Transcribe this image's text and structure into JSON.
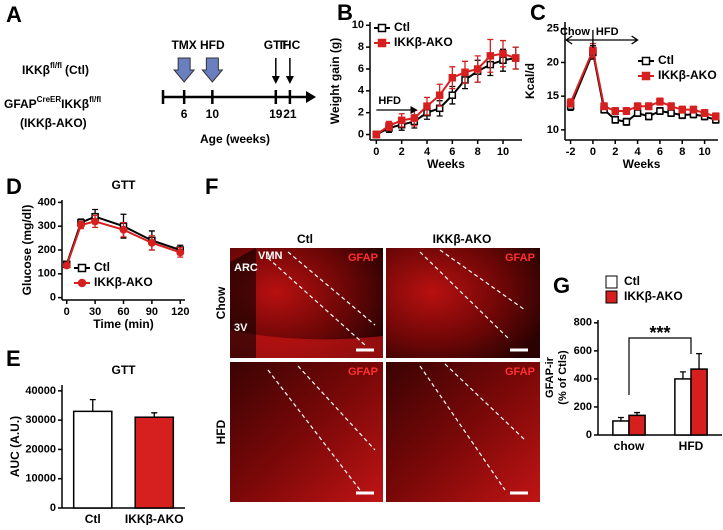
{
  "panel_labels": [
    "A",
    "B",
    "C",
    "D",
    "E",
    "F",
    "G"
  ],
  "timeline": {
    "genotypes": [
      [
        "IKKβ",
        "fl/fl",
        "(Ctl)"
      ],
      [
        "GFAP",
        "CreER",
        "IKKβ",
        "fl/fl"
      ],
      [
        "(IKKβ-AKO)"
      ]
    ],
    "events": [
      {
        "label": "TMX",
        "week": "6"
      },
      {
        "label": "HFD",
        "week": "10"
      },
      {
        "label": "GTT",
        "week": "19"
      },
      {
        "label": "IHC",
        "week": "21"
      }
    ],
    "xlabel": "Age (weeks)"
  },
  "micrographs": {
    "columns": [
      "Ctl",
      "IKKβ-AKO"
    ],
    "rows": [
      "Chow",
      "HFD"
    ],
    "stain": "GFAP",
    "regions": [
      "ARC",
      "VMN",
      "3V"
    ]
  },
  "chart_data": [
    {
      "type": "line",
      "xlabel": "Weeks",
      "ylabel": "Weight gain (g)",
      "annotations": [
        "HFD"
      ],
      "legend": "upper left",
      "x": [
        0,
        1,
        2,
        3,
        4,
        5,
        6,
        7,
        8,
        9,
        10,
        11
      ],
      "xlim": [
        -0.5,
        11.5
      ],
      "xticks": [
        0,
        2,
        4,
        6,
        8,
        10
      ],
      "ylim": [
        -0.5,
        10.3
      ],
      "yticks": [
        0,
        2,
        4,
        6,
        8,
        10
      ],
      "series": [
        {
          "name": "Ctl",
          "color": "#000000",
          "fill": "#ffffff",
          "marker": "square",
          "values": [
            0,
            0.6,
            0.9,
            1.2,
            2,
            2.4,
            3.6,
            5,
            5.8,
            6.4,
            6.8,
            7
          ],
          "errors": [
            0.3,
            0.4,
            0.5,
            0.6,
            0.6,
            0.7,
            0.8,
            0.8,
            1,
            1,
            1,
            1
          ]
        },
        {
          "name": "IKKβ-AKO",
          "color": "#d62020",
          "fill": "#d62020",
          "marker": "square",
          "values": [
            0,
            0.8,
            1.3,
            1.5,
            2.6,
            3.6,
            5.2,
            5.7,
            6,
            7.2,
            7.4,
            7
          ],
          "errors": [
            0.3,
            0.4,
            0.6,
            0.7,
            0.8,
            1,
            1,
            1,
            1.2,
            1.5,
            1.2,
            1
          ]
        }
      ]
    },
    {
      "type": "line",
      "xlabel": "Weeks",
      "ylabel": "Kcal/d",
      "annotations": [
        "Chow",
        "HFD"
      ],
      "legend": "center right",
      "x": [
        -2,
        0,
        1,
        2,
        3,
        4,
        5,
        6,
        7,
        8,
        9,
        10,
        11
      ],
      "xlim": [
        -2.5,
        11.2
      ],
      "xticks": [
        -2,
        0,
        2,
        4,
        6,
        8,
        10
      ],
      "ylim": [
        8.5,
        26
      ],
      "yticks": [
        10,
        15,
        20,
        25
      ],
      "series": [
        {
          "name": "Ctl",
          "color": "#000000",
          "fill": "#ffffff",
          "marker": "square",
          "values": [
            13.5,
            21.5,
            13,
            11.5,
            11.2,
            12.5,
            12,
            12.8,
            12.5,
            12.2,
            12.3,
            12,
            11.5
          ],
          "errors": [
            0.6,
            1,
            0.5,
            0.5,
            0.5,
            0.5,
            0.5,
            0.5,
            0.5,
            0.5,
            0.5,
            0.5,
            0.5
          ]
        },
        {
          "name": "IKKβ-AKO",
          "color": "#d62020",
          "fill": "#d62020",
          "marker": "square",
          "values": [
            14,
            21.8,
            13.5,
            12.8,
            12.8,
            13.5,
            13.5,
            14.2,
            13.5,
            13,
            13,
            12.5,
            12
          ],
          "errors": [
            0.6,
            1,
            0.5,
            0.5,
            0.5,
            0.5,
            0.5,
            0.5,
            0.5,
            0.5,
            0.5,
            0.5,
            0.5
          ]
        }
      ]
    },
    {
      "type": "line",
      "title": "GTT",
      "xlabel": "Time (min)",
      "ylabel": "Glucose (mg/dl)",
      "legend": "lower center",
      "x": [
        0,
        15,
        30,
        60,
        90,
        120
      ],
      "xlim": [
        -5,
        125
      ],
      "xticks": [
        0,
        30,
        60,
        90,
        120
      ],
      "ylim": [
        -10,
        410
      ],
      "yticks": [
        0,
        100,
        200,
        300,
        400
      ],
      "series": [
        {
          "name": "Ctl",
          "color": "#000000",
          "fill": "#ffffff",
          "marker": "square",
          "values": [
            140,
            315,
            340,
            300,
            240,
            200
          ],
          "errors": [
            10,
            15,
            30,
            50,
            40,
            20
          ]
        },
        {
          "name": "IKKβ-AKO",
          "color": "#d62020",
          "fill": "#d62020",
          "marker": "circle",
          "values": [
            135,
            305,
            320,
            285,
            230,
            190
          ],
          "errors": [
            10,
            15,
            25,
            30,
            30,
            20
          ]
        }
      ]
    },
    {
      "type": "bar",
      "title": "GTT",
      "ylabel": "AUC (A.U.)",
      "categories": [
        "Ctl",
        "IKKβ-AKO"
      ],
      "values": [
        33000,
        31000
      ],
      "errors": [
        4000,
        1500
      ],
      "colors": [
        "#ffffff",
        "#d62020"
      ],
      "ylim": [
        0,
        42000
      ],
      "yticks": [
        0,
        10000,
        20000,
        30000,
        40000
      ]
    },
    {
      "type": "grouped_bar",
      "ylabel": [
        "GFAP-ir",
        "(% of Ctls)"
      ],
      "annotations": [
        "***"
      ],
      "legend": "above",
      "categories": [
        "chow",
        "HFD"
      ],
      "ylim": [
        0,
        820
      ],
      "yticks": [
        0,
        200,
        400,
        600,
        800
      ],
      "series": [
        {
          "name": "Ctl",
          "color": "#ffffff",
          "values": [
            100,
            400
          ],
          "errors": [
            25,
            50
          ]
        },
        {
          "name": "IKKβ-AKO",
          "color": "#d62020",
          "values": [
            140,
            470
          ],
          "errors": [
            20,
            110
          ]
        }
      ]
    }
  ]
}
